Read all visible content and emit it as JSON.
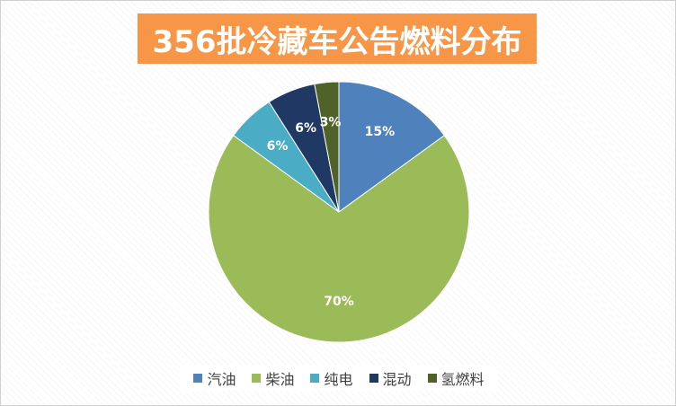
{
  "chart_data": {
    "type": "pie",
    "title": "356批冷藏车公告燃料分布",
    "categories": [
      "汽油",
      "柴油",
      "纯电",
      "混动",
      "氢燃料"
    ],
    "values": [
      15,
      70,
      6,
      6,
      3
    ],
    "labels": [
      "15%",
      "70%",
      "6%",
      "6%",
      "3%"
    ],
    "colors": [
      "#4f81bd",
      "#9bbb59",
      "#4bacc6",
      "#1f3864",
      "#4f6228"
    ],
    "label_colors": [
      "#ffffff",
      "#ffffff",
      "#ffffff",
      "#ffffff",
      "#ffffff"
    ],
    "legend_position": "bottom"
  },
  "title_bg_color": "#f79646"
}
